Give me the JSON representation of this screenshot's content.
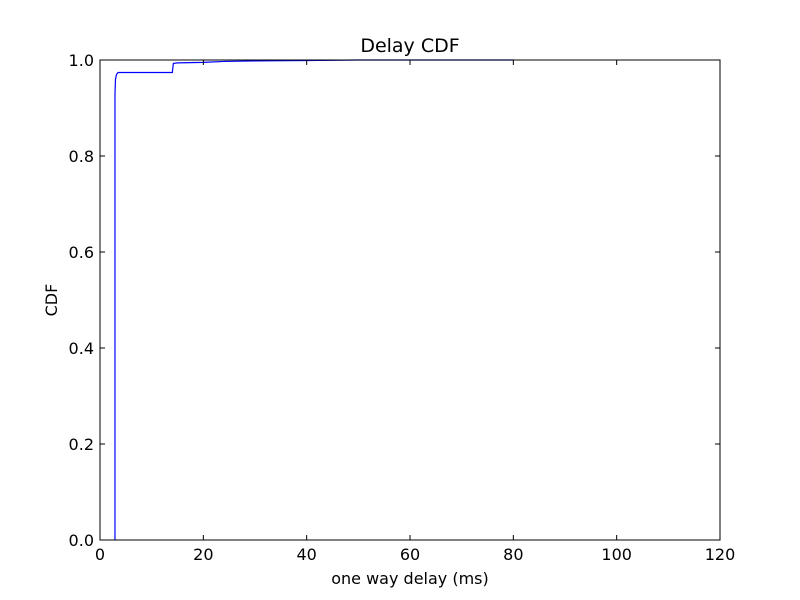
{
  "chart_data": {
    "type": "line",
    "title": "Delay CDF",
    "xlabel": "one way delay (ms)",
    "ylabel": "CDF",
    "xlim": [
      0,
      120
    ],
    "ylim": [
      0,
      1
    ],
    "xticks": [
      0,
      20,
      40,
      60,
      80,
      100,
      120
    ],
    "yticks": [
      0.0,
      0.2,
      0.4,
      0.6,
      0.8,
      1.0
    ],
    "xtick_labels": [
      "0",
      "20",
      "40",
      "60",
      "80",
      "100",
      "120"
    ],
    "ytick_labels": [
      "0.0",
      "0.2",
      "0.4",
      "0.6",
      "0.8",
      "1.0"
    ],
    "grid": false,
    "series": [
      {
        "color": "#0000ff",
        "x": [
          2.9,
          2.9,
          3.0,
          3.2,
          3.5,
          14.0,
          14.2,
          15.0,
          20.0,
          24.0,
          30.0,
          40.0,
          50.0,
          60.0,
          80.0
        ],
        "y": [
          0.0,
          0.93,
          0.96,
          0.97,
          0.974,
          0.974,
          0.993,
          0.994,
          0.995,
          0.997,
          0.998,
          0.999,
          1.0,
          1.0,
          1.0
        ]
      }
    ]
  }
}
